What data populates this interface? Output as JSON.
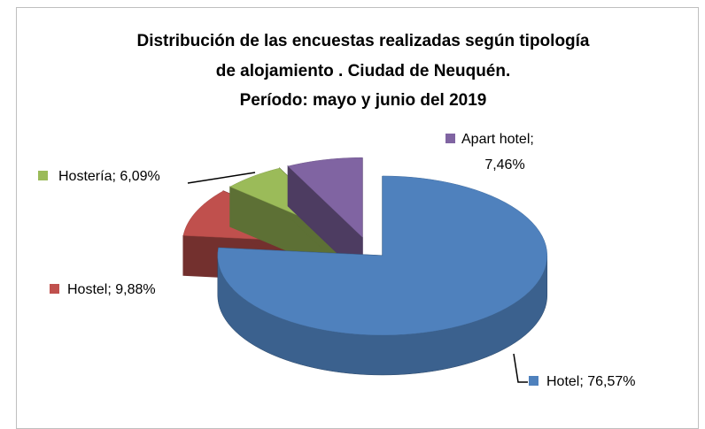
{
  "chart_data": {
    "type": "pie3d",
    "title": [
      "Distribución de las encuestas realizadas según tipología",
      "de alojamiento . Ciudad de Neuquén.",
      "Período: mayo y junio del 2019"
    ],
    "values": [
      76.57,
      9.88,
      6.09,
      7.46
    ],
    "value_labels": [
      [
        "Hotel; 76,57%"
      ],
      [
        "Hostel; 9,88%"
      ],
      [
        "Hostería; 6,09%"
      ],
      [
        "Apart hotel;",
        "7,46%"
      ]
    ],
    "colors": [
      "#4f81bd",
      "#c0504d",
      "#9bbb59",
      "#8064a2"
    ]
  }
}
